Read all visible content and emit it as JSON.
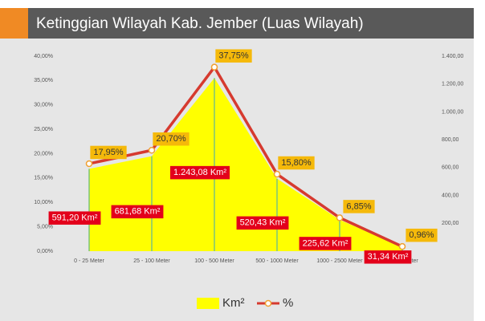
{
  "chart_data": {
    "type": "combo",
    "title": "Ketinggian Wilayah Kab. Jember (Luas Wilayah)",
    "categories": [
      "0 - 25 Meter",
      "25 - 100 Meter",
      "100 - 500 Meter",
      "500 - 1000 Meter",
      "1000 - 2500 Meter",
      ">2500 Meter"
    ],
    "series": [
      {
        "name": "Km²",
        "type": "area",
        "axis": "y2",
        "color": "#ffff00",
        "values": [
          591.2,
          681.68,
          1243.08,
          520.43,
          225.62,
          31.34
        ],
        "value_labels": [
          "591,20 Km²",
          "681,68 Km²",
          "1.243,08 Km²",
          "520,43 Km²",
          "225,62 Km²",
          "31,34 Km²"
        ]
      },
      {
        "name": "%",
        "type": "line",
        "color": "#d63a2f",
        "values": [
          17.95,
          20.7,
          37.75,
          15.8,
          6.85,
          0.96
        ],
        "value_labels": [
          "17,95%",
          "20,70%",
          "37,75%",
          "15,80%",
          "6,85%",
          "0,96%"
        ]
      }
    ],
    "ylim": [
      0,
      40
    ],
    "yticks": [
      {
        "value": 0,
        "label": "0,00%"
      },
      {
        "value": 5,
        "label": "5,00%"
      },
      {
        "value": 10,
        "label": "10,00%"
      },
      {
        "value": 15,
        "label": "15,00%"
      },
      {
        "value": 20,
        "label": "20,00%"
      },
      {
        "value": 25,
        "label": "25,00%"
      },
      {
        "value": 30,
        "label": "30,00%"
      },
      {
        "value": 35,
        "label": "35,00%"
      },
      {
        "value": 40,
        "label": "40,00%"
      }
    ],
    "y2lim": [
      0,
      1400
    ],
    "y2ticks": [
      {
        "value": 200,
        "label": "200,00"
      },
      {
        "value": 400,
        "label": "400,00"
      },
      {
        "value": 600,
        "label": "600,00"
      },
      {
        "value": 800,
        "label": "800,00"
      },
      {
        "value": 1000,
        "label": "1.000,00"
      },
      {
        "value": 1200,
        "label": "1.200,00"
      },
      {
        "value": 1400,
        "label": "1.400,00"
      }
    ],
    "grid": false
  }
}
